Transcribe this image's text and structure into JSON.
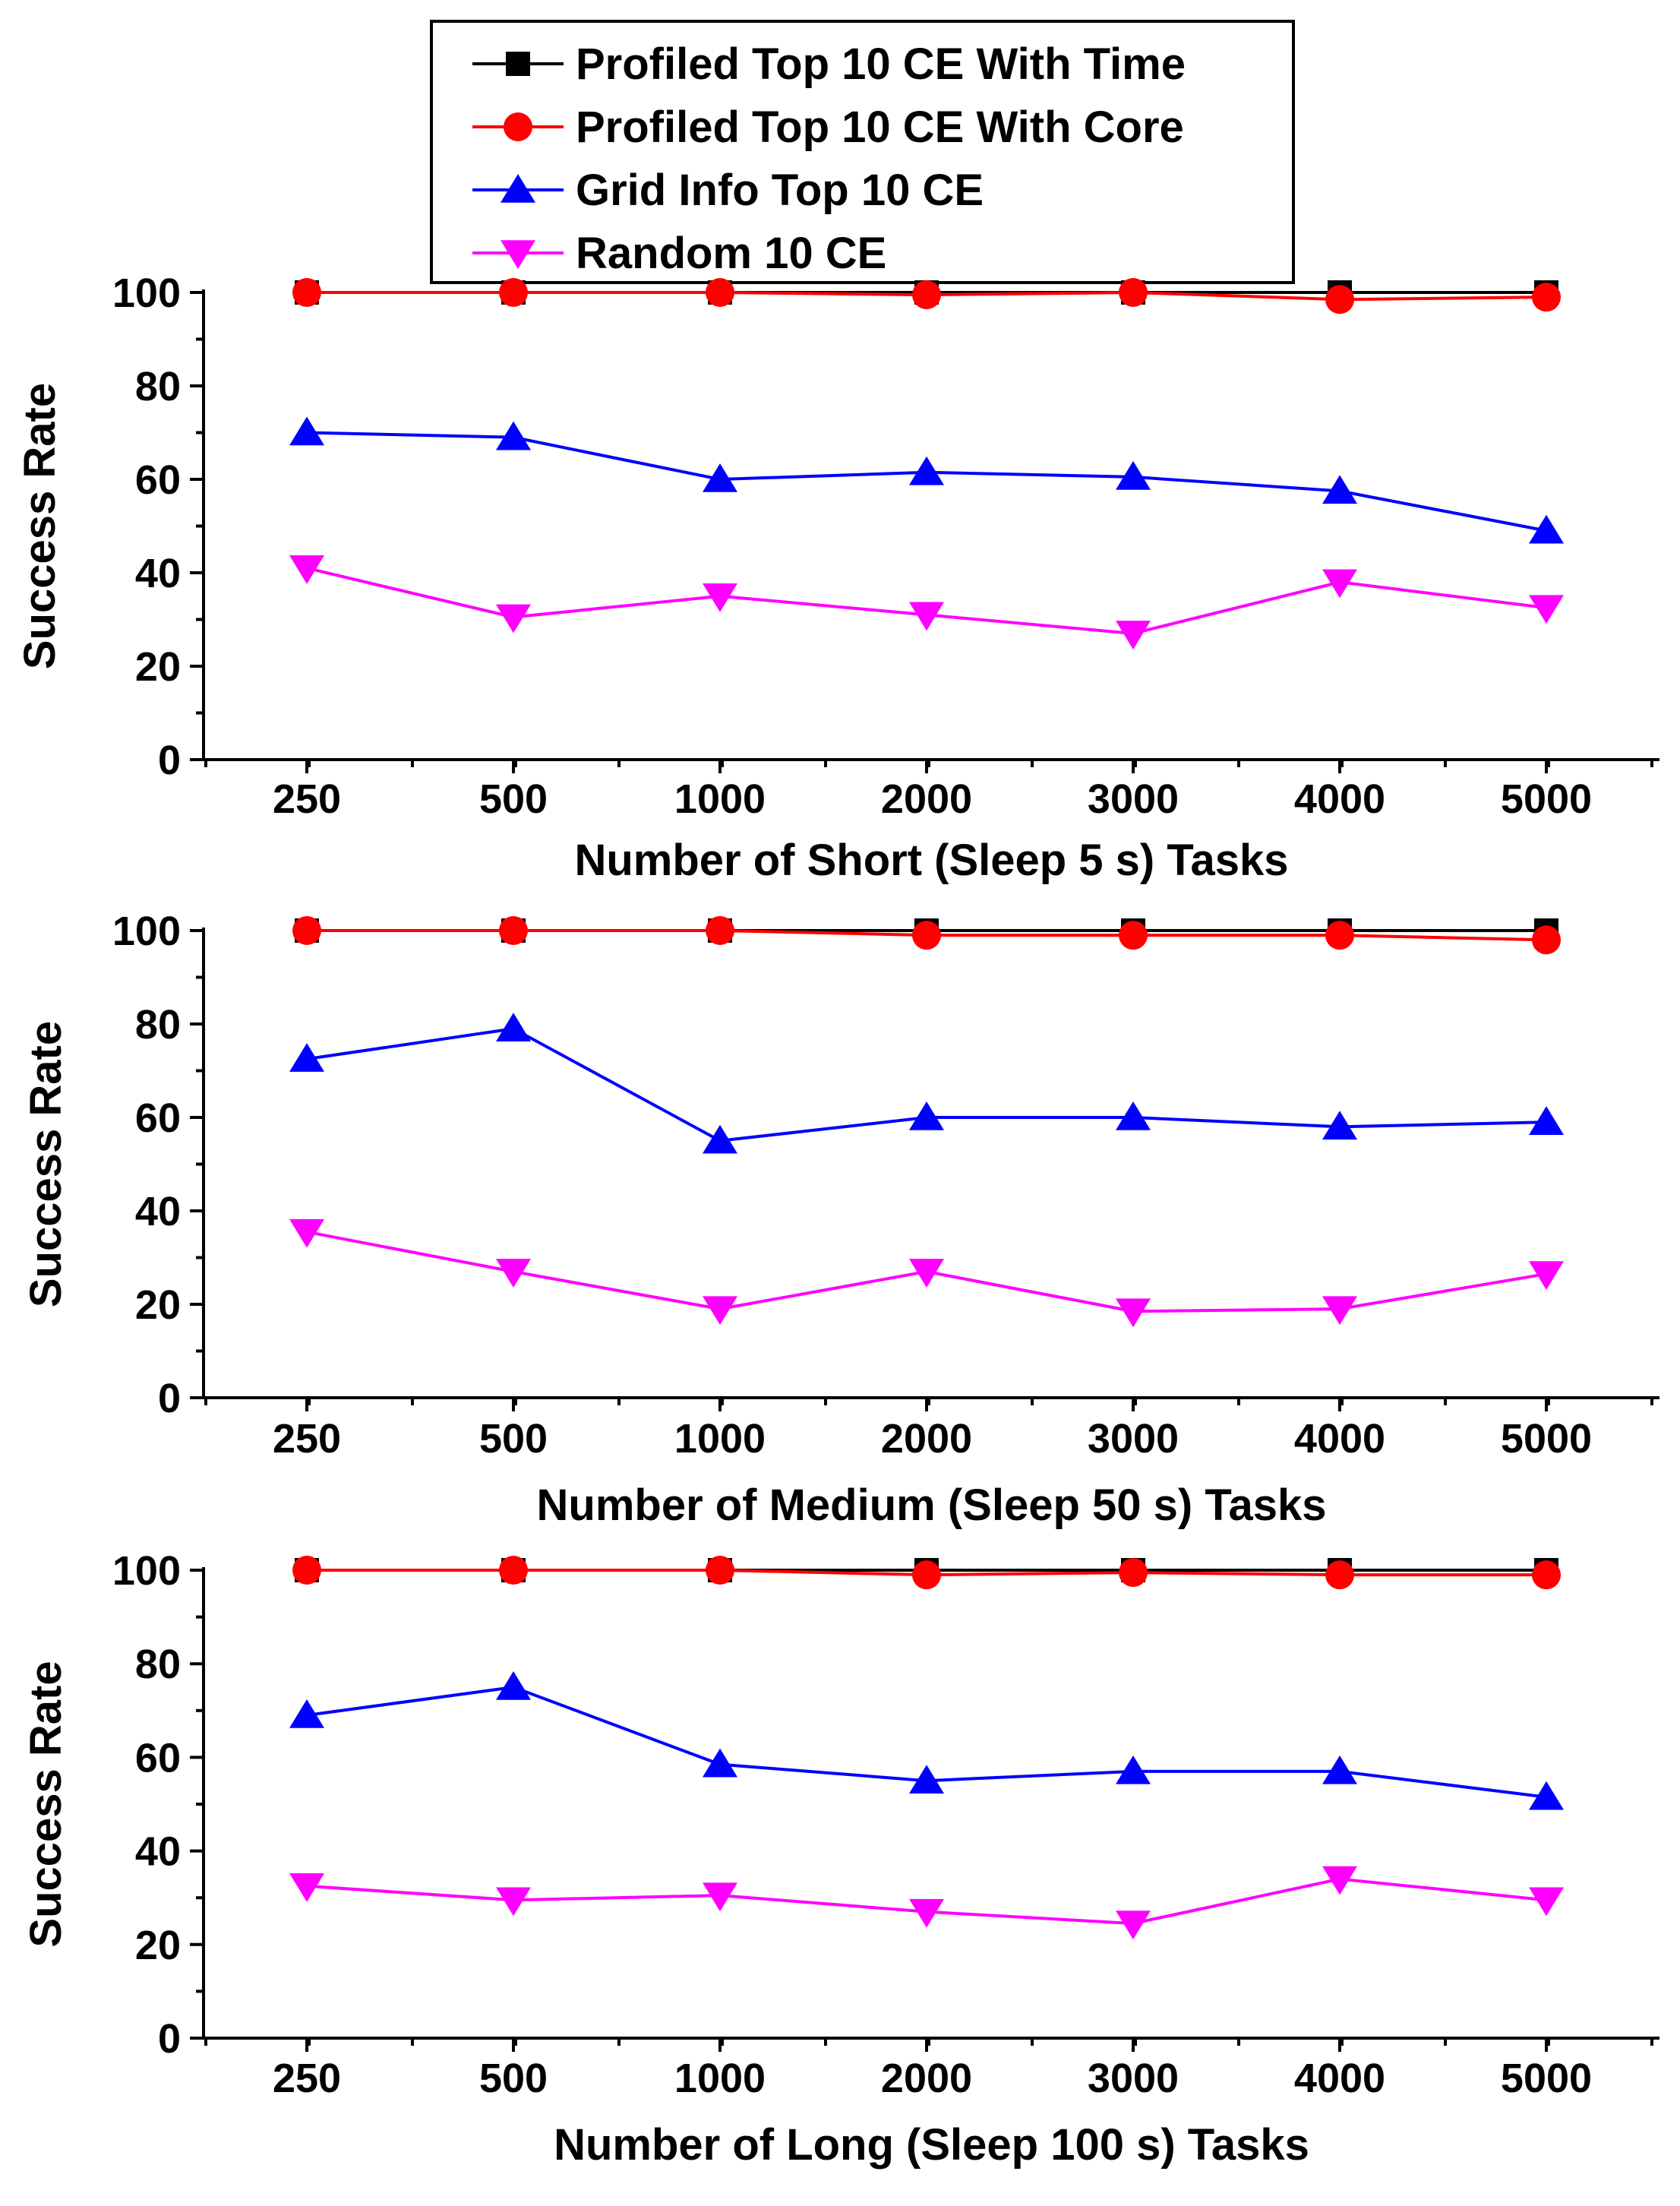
{
  "colors": {
    "time": "#000000",
    "core": "#ff0000",
    "grid": "#0000ff",
    "random": "#ff00ff",
    "axis": "#000000",
    "background": "#ffffff"
  },
  "legend": {
    "placement": "top-center",
    "entries": [
      {
        "series": "time",
        "label": "Profiled Top 10 CE With Time",
        "marker": "square"
      },
      {
        "series": "core",
        "label": "Profiled Top 10 CE With Core",
        "marker": "circle"
      },
      {
        "series": "grid",
        "label": "Grid Info Top 10 CE",
        "marker": "triangle-up"
      },
      {
        "series": "random",
        "label": "Random 10 CE",
        "marker": "triangle-down"
      }
    ]
  },
  "chart_data": [
    {
      "type": "line",
      "categories": [
        "250",
        "500",
        "1000",
        "2000",
        "3000",
        "4000",
        "5000"
      ],
      "xlabel": "Number of Short (Sleep 5 s) Tasks",
      "ylabel": "Success Rate",
      "ylim": [
        0,
        100
      ],
      "yticks": [
        "0",
        "20",
        "40",
        "60",
        "80",
        "100"
      ],
      "grid": false,
      "series": [
        {
          "key": "time",
          "name": "Profiled Top 10 CE With Time",
          "marker": "square",
          "values": [
            100,
            100,
            100,
            100,
            100,
            100,
            100
          ]
        },
        {
          "key": "core",
          "name": "Profiled Top 10 CE With Core",
          "marker": "circle",
          "values": [
            100,
            100,
            100,
            99.5,
            100,
            98.5,
            99
          ]
        },
        {
          "key": "grid",
          "name": "Grid Info Top 10 CE",
          "marker": "triangle-up",
          "values": [
            70,
            69,
            60,
            61.5,
            60.5,
            57.5,
            49
          ]
        },
        {
          "key": "random",
          "name": "Random 10 CE",
          "marker": "triangle-down",
          "values": [
            41,
            30.5,
            35,
            31,
            27,
            38,
            32.5
          ]
        }
      ]
    },
    {
      "type": "line",
      "categories": [
        "250",
        "500",
        "1000",
        "2000",
        "3000",
        "4000",
        "5000"
      ],
      "xlabel": "Number of Medium (Sleep 50 s) Tasks",
      "ylabel": "Success Rate",
      "ylim": [
        0,
        100
      ],
      "yticks": [
        "0",
        "20",
        "40",
        "60",
        "80",
        "100"
      ],
      "grid": false,
      "series": [
        {
          "key": "time",
          "name": "Profiled Top 10 CE With Time",
          "marker": "square",
          "values": [
            100,
            100,
            100,
            100,
            100,
            100,
            100
          ]
        },
        {
          "key": "core",
          "name": "Profiled Top 10 CE With Core",
          "marker": "circle",
          "values": [
            100,
            100,
            100,
            99,
            99,
            99,
            98
          ]
        },
        {
          "key": "grid",
          "name": "Grid Info Top 10 CE",
          "marker": "triangle-up",
          "values": [
            72.5,
            79,
            55,
            60,
            60,
            58,
            59
          ]
        },
        {
          "key": "random",
          "name": "Random 10 CE",
          "marker": "triangle-down",
          "values": [
            35.5,
            27,
            19,
            27,
            18.5,
            19,
            26.5
          ]
        }
      ]
    },
    {
      "type": "line",
      "categories": [
        "250",
        "500",
        "1000",
        "2000",
        "3000",
        "4000",
        "5000"
      ],
      "xlabel": "Number of Long (Sleep 100 s) Tasks",
      "ylabel": "Success Rate",
      "ylim": [
        0,
        100
      ],
      "yticks": [
        "0",
        "20",
        "40",
        "60",
        "80",
        "100"
      ],
      "grid": false,
      "series": [
        {
          "key": "time",
          "name": "Profiled Top 10 CE With Time",
          "marker": "square",
          "values": [
            100,
            100,
            100,
            100,
            100,
            100,
            100
          ]
        },
        {
          "key": "core",
          "name": "Profiled Top 10 CE With Core",
          "marker": "circle",
          "values": [
            100,
            100,
            100,
            99,
            99.5,
            99,
            99
          ]
        },
        {
          "key": "grid",
          "name": "Grid Info Top 10 CE",
          "marker": "triangle-up",
          "values": [
            69,
            75,
            58.5,
            55,
            57,
            57,
            51.5
          ]
        },
        {
          "key": "random",
          "name": "Random 10 CE",
          "marker": "triangle-down",
          "values": [
            32.5,
            29.5,
            30.5,
            27,
            24.5,
            34,
            29.5
          ]
        }
      ]
    }
  ]
}
